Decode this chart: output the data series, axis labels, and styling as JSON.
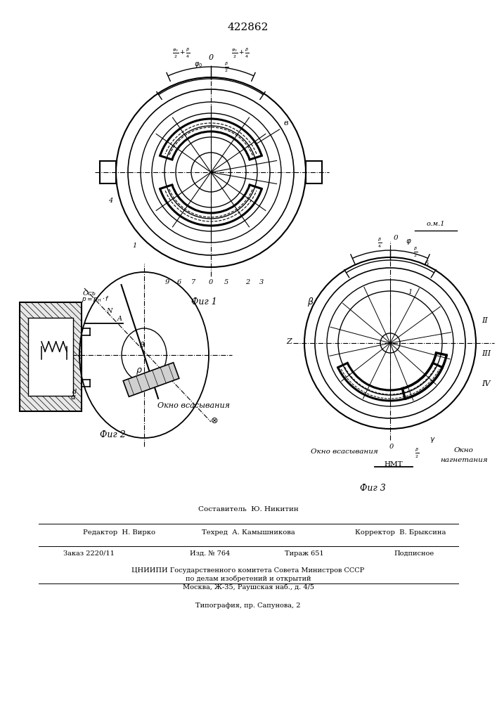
{
  "patent_number": "422862",
  "bg_color": "#ffffff",
  "line_color": "#000000",
  "fig_label1": "Фиг 1",
  "fig_label2": "Фиг 2",
  "fig_label3": "Фиг 3"
}
